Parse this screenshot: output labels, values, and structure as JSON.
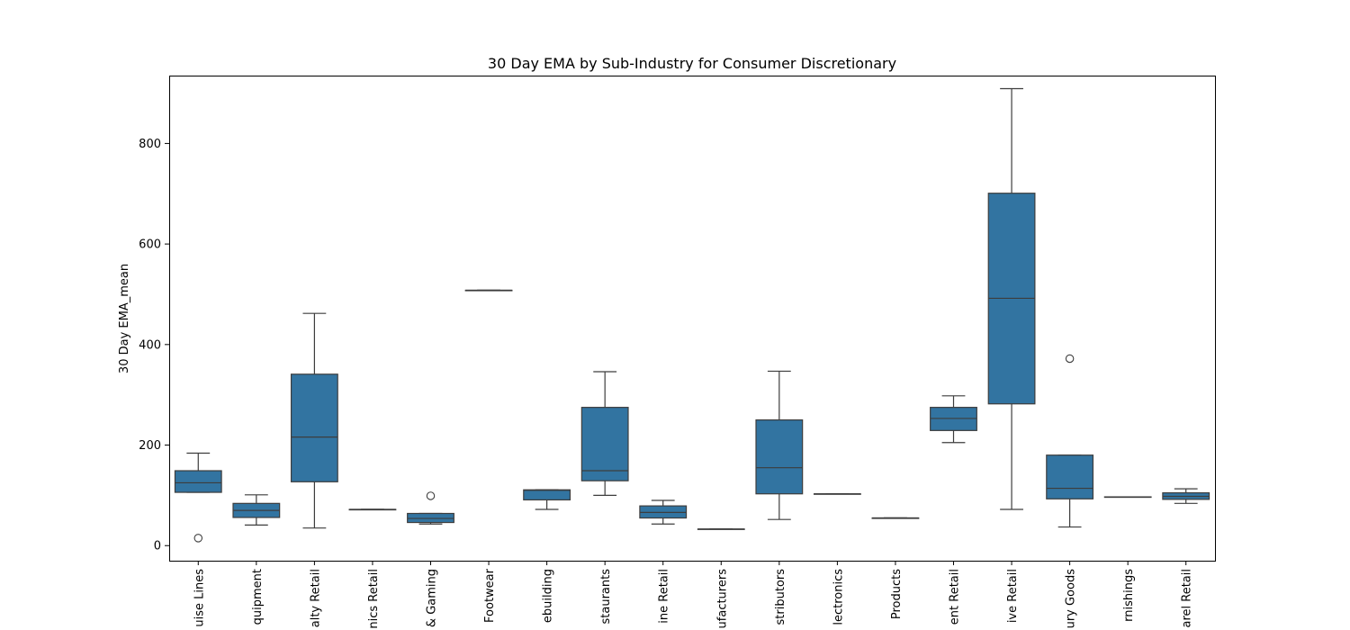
{
  "chart_data": {
    "type": "box",
    "title": "30 Day EMA by Sub-Industry for Consumer Discretionary",
    "xlabel": "",
    "ylabel": "30 Day EMA_mean",
    "ylim": [
      -30,
      935
    ],
    "yticks": [
      0,
      200,
      400,
      600,
      800
    ],
    "grid": false,
    "box_color": "#3274a1",
    "line_color": "#3d3d3d",
    "categories": [
      "uise Lines",
      "quipment",
      "alty Retail",
      "nics Retail",
      "& Gaming",
      "Footwear",
      "ebuilding",
      "staurants",
      "ine Retail",
      "ufacturers",
      "stributors",
      "lectronics",
      "Products",
      "ent Retail",
      "ive Retail",
      "ury Goods",
      "rnishings",
      "arel Retail"
    ],
    "boxes": [
      {
        "whisker_low": 106,
        "q1": 106,
        "median": 125,
        "q3": 149,
        "whisker_high": 184,
        "outliers": [
          15
        ]
      },
      {
        "whisker_low": 41,
        "q1": 56,
        "median": 70,
        "q3": 84,
        "whisker_high": 101,
        "outliers": []
      },
      {
        "whisker_low": 35,
        "q1": 127,
        "median": 216,
        "q3": 341,
        "whisker_high": 462,
        "outliers": []
      },
      {
        "whisker_low": 72,
        "q1": 72,
        "median": 72,
        "q3": 72,
        "whisker_high": 72,
        "outliers": []
      },
      {
        "whisker_low": 43,
        "q1": 46,
        "median": 54,
        "q3": 64,
        "whisker_high": 64,
        "outliers": [
          99
        ]
      },
      {
        "whisker_low": 508,
        "q1": 508,
        "median": 508,
        "q3": 508,
        "whisker_high": 508,
        "outliers": []
      },
      {
        "whisker_low": 72,
        "q1": 91,
        "median": 110,
        "q3": 111,
        "whisker_high": 111,
        "outliers": []
      },
      {
        "whisker_low": 100,
        "q1": 129,
        "median": 149,
        "q3": 275,
        "whisker_high": 346,
        "outliers": []
      },
      {
        "whisker_low": 43,
        "q1": 55,
        "median": 66,
        "q3": 79,
        "whisker_high": 90,
        "outliers": []
      },
      {
        "whisker_low": 33,
        "q1": 33,
        "median": 33,
        "q3": 33,
        "whisker_high": 33,
        "outliers": []
      },
      {
        "whisker_low": 52,
        "q1": 103,
        "median": 155,
        "q3": 250,
        "whisker_high": 347,
        "outliers": []
      },
      {
        "whisker_low": 103,
        "q1": 103,
        "median": 103,
        "q3": 103,
        "whisker_high": 103,
        "outliers": []
      },
      {
        "whisker_low": 55,
        "q1": 55,
        "median": 55,
        "q3": 55,
        "whisker_high": 55,
        "outliers": []
      },
      {
        "whisker_low": 205,
        "q1": 229,
        "median": 253,
        "q3": 275,
        "whisker_high": 298,
        "outliers": []
      },
      {
        "whisker_low": 72,
        "q1": 282,
        "median": 492,
        "q3": 701,
        "whisker_high": 909,
        "outliers": []
      },
      {
        "whisker_low": 37,
        "q1": 93,
        "median": 114,
        "q3": 180,
        "whisker_high": 180,
        "outliers": [
          372
        ]
      },
      {
        "whisker_low": 97,
        "q1": 97,
        "median": 97,
        "q3": 97,
        "whisker_high": 97,
        "outliers": []
      },
      {
        "whisker_low": 84,
        "q1": 92,
        "median": 98,
        "q3": 105,
        "whisker_high": 113,
        "outliers": []
      }
    ]
  }
}
